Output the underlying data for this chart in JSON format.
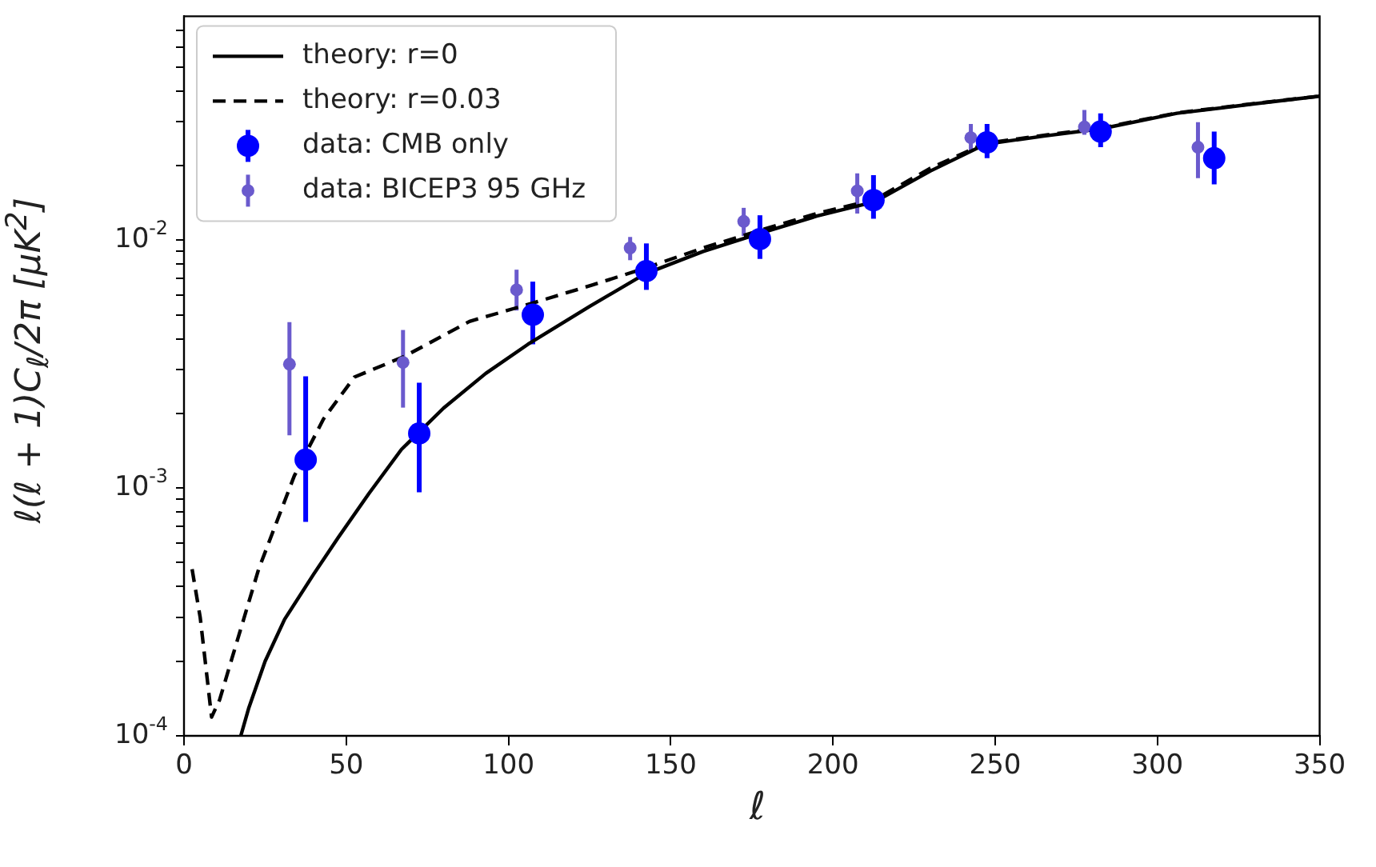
{
  "chart_data": {
    "type": "scatter",
    "xlabel": "ℓ",
    "ylabel": "ℓ(ℓ + 1)C$_{ℓ}$/2π [μK$^{2}$]",
    "xlim": [
      0,
      350
    ],
    "xticks": [
      0,
      50,
      100,
      150,
      200,
      250,
      300,
      350
    ],
    "ylim": [
      0.0001,
      0.08
    ],
    "log": "y",
    "legend": "top left",
    "grid": false,
    "yticks": [
      {
        "value": 0.0001,
        "label": "10$^{-4}$"
      },
      {
        "value": 0.0002,
        "label": null
      },
      {
        "value": 0.0003,
        "label": null
      },
      {
        "value": 0.0004,
        "label": null
      },
      {
        "value": 0.0005,
        "label": null
      },
      {
        "value": 0.0006,
        "label": null
      },
      {
        "value": 0.0007,
        "label": null
      },
      {
        "value": 0.0008,
        "label": null
      },
      {
        "value": 0.0009,
        "label": null
      },
      {
        "value": 0.001,
        "label": "10$^{-3}$"
      },
      {
        "value": 0.002,
        "label": null
      },
      {
        "value": 0.003,
        "label": null
      },
      {
        "value": 0.004,
        "label": null
      },
      {
        "value": 0.005,
        "label": null
      },
      {
        "value": 0.006,
        "label": null
      },
      {
        "value": 0.007,
        "label": null
      },
      {
        "value": 0.008,
        "label": null
      },
      {
        "value": 0.009,
        "label": null
      },
      {
        "value": 0.01,
        "label": "10$^{-2}$"
      },
      {
        "value": 0.02,
        "label": null
      },
      {
        "value": 0.03,
        "label": null
      },
      {
        "value": 0.04,
        "label": null
      },
      {
        "value": 0.05,
        "label": null
      },
      {
        "value": 0.06,
        "label": null
      },
      {
        "value": 0.07,
        "label": null
      }
    ],
    "series": [
      {
        "name": "theory: r=0",
        "type": "line",
        "color": "#000000",
        "line_style": "solid",
        "marker": "none",
        "x": [
          17.5,
          20,
          25,
          31,
          40,
          47.5,
          57,
          67,
          80,
          93,
          106,
          125,
          142,
          160,
          178,
          195,
          213,
          230,
          247,
          265,
          283,
          306,
          330,
          350
        ],
        "values": [
          0.0001,
          0.00013,
          0.0002,
          0.000295,
          0.00045,
          0.00063,
          0.00095,
          0.00143,
          0.0021,
          0.0029,
          0.0038,
          0.0054,
          0.0073,
          0.009,
          0.0107,
          0.0125,
          0.0143,
          0.019,
          0.0244,
          0.0263,
          0.0282,
          0.0325,
          0.0355,
          0.0381
        ]
      },
      {
        "name": "theory: r=0.03",
        "type": "line",
        "color": "#000000",
        "line_style": "dashed",
        "marker": "none",
        "x": [
          2.5,
          5,
          8.5,
          11,
          15,
          23,
          34,
          43,
          52.5,
          68,
          88,
          106,
          126,
          142,
          160,
          178,
          195,
          213,
          230,
          247,
          265,
          283,
          306,
          330,
          350
        ],
        "values": [
          0.00047,
          0.0003,
          0.000119,
          0.00014,
          0.00021,
          0.00047,
          0.00112,
          0.0019,
          0.0028,
          0.0034,
          0.0047,
          0.0055,
          0.0066,
          0.0077,
          0.0093,
          0.011,
          0.0128,
          0.0146,
          0.0195,
          0.0246,
          0.0265,
          0.0284,
          0.0326,
          0.0356,
          0.0381
        ]
      },
      {
        "name": "data: CMB only",
        "type": "scatter",
        "color": "#0000ff",
        "marker": "circle",
        "x": [
          37.5,
          72.5,
          107.5,
          142.5,
          177.5,
          212.5,
          247.5,
          282.5,
          317.5
        ],
        "values": [
          0.0013,
          0.00166,
          0.005,
          0.0075,
          0.0101,
          0.0145,
          0.0248,
          0.0274,
          0.0214
        ],
        "errors": [
          [
            0.00073,
            0.00282
          ],
          [
            0.00096,
            0.00266
          ],
          [
            0.0038,
            0.0068
          ],
          [
            0.0063,
            0.0097
          ],
          [
            0.0084,
            0.0126
          ],
          [
            0.0122,
            0.0183
          ],
          [
            0.0214,
            0.0294
          ],
          [
            0.0237,
            0.0325
          ],
          [
            0.0168,
            0.0274
          ]
        ]
      },
      {
        "name": "data: BICEP3 95 GHz",
        "type": "scatter",
        "color": "#6a5acd",
        "marker": "circle",
        "x": [
          32.5,
          67.5,
          102.5,
          137.5,
          172.5,
          207.5,
          242.5,
          277.5,
          312.5
        ],
        "values": [
          0.00316,
          0.00321,
          0.0063,
          0.0093,
          0.0119,
          0.0158,
          0.0259,
          0.0286,
          0.0237
        ],
        "errors": [
          [
            0.00163,
            0.00467
          ],
          [
            0.00211,
            0.00434
          ],
          [
            0.0052,
            0.0076
          ],
          [
            0.0083,
            0.0103
          ],
          [
            0.0104,
            0.0135
          ],
          [
            0.0128,
            0.0186
          ],
          [
            0.0227,
            0.0294
          ],
          [
            0.0266,
            0.0335
          ],
          [
            0.0178,
            0.0299
          ]
        ]
      }
    ]
  }
}
